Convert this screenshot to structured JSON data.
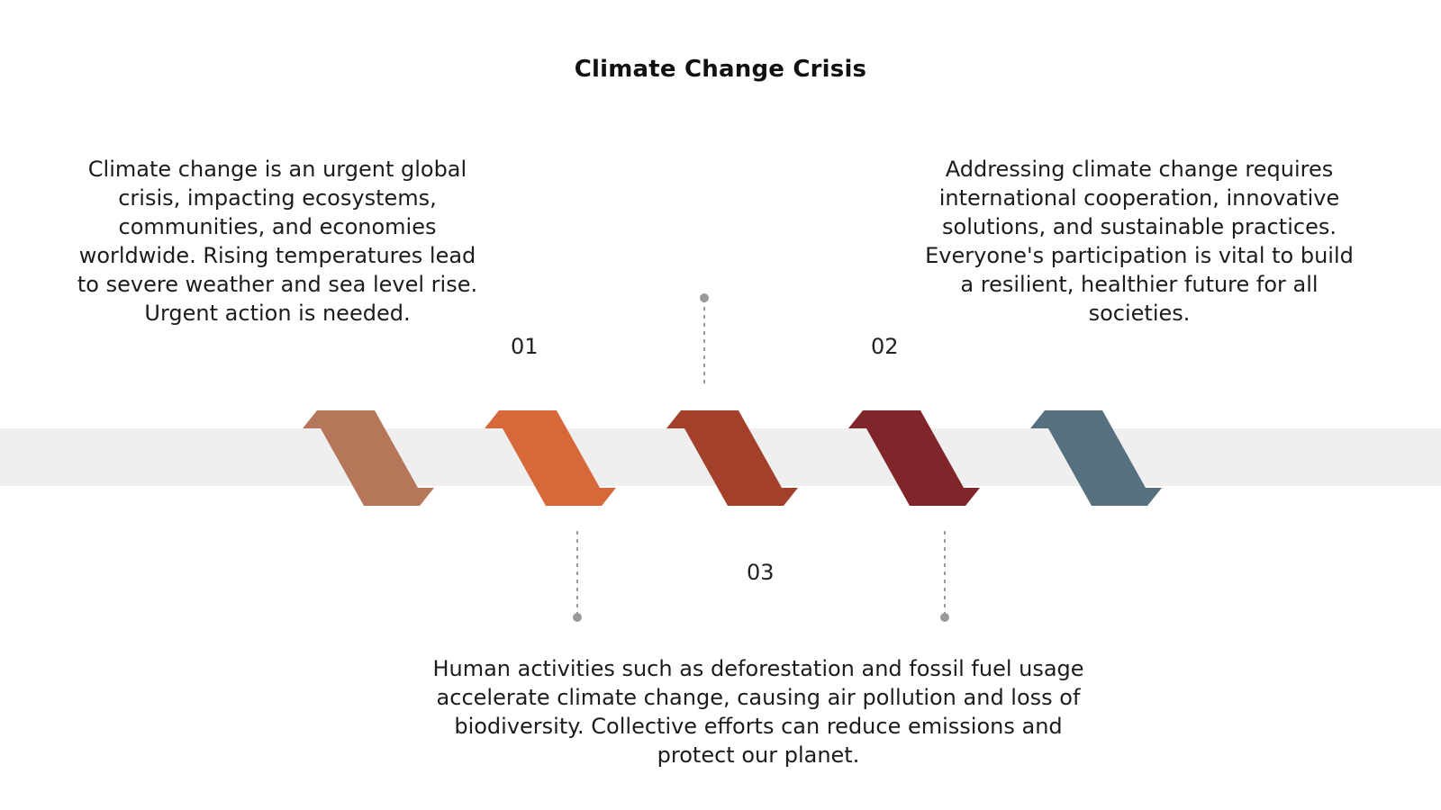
{
  "title": "Climate Change Crisis",
  "steps": [
    {
      "number": "01",
      "text": "Climate change is an urgent global crisis, impacting ecosystems, communities, and economies worldwide. Rising temperatures lead to severe weather and sea level rise. Urgent action is needed."
    },
    {
      "number": "02",
      "text": "Addressing climate change requires international cooperation, innovative solutions, and sustainable practices. Everyone's participation is vital to build a resilient, healthier future for all societies."
    },
    {
      "number": "03",
      "text": "Human activities such as deforestation and fossil fuel usage accelerate climate change, causing air pollution and loss of biodiversity. Collective efforts can reduce emissions and protect our planet."
    }
  ],
  "colors": {
    "band": "#efefef",
    "connector": "#9a9a9a",
    "chevrons": [
      "#b5765a",
      "#d6683a",
      "#a2402a",
      "#80252a",
      "#56707f"
    ]
  }
}
